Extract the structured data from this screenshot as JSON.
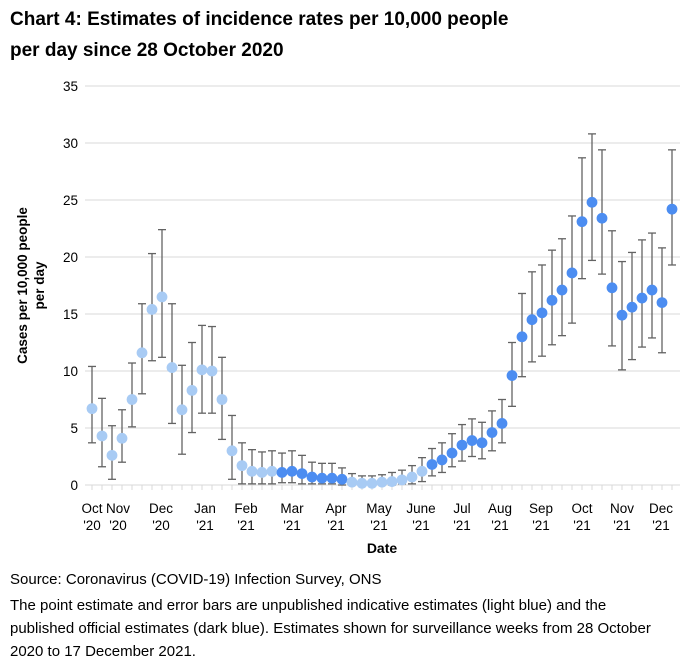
{
  "title_line1": "Chart 4: Estimates of incidence rates per 10,000 people",
  "title_line2": "per day since 28 October 2020",
  "source": "Source: Coronavirus (COVID-19) Infection Survey, ONS",
  "note": "The point estimate and error bars are unpublished indicative estimates (light blue) and the published official estimates (dark blue). Estimates shown for surveillance weeks from 28 October 2020 to 17 December 2021.",
  "y_axis": {
    "title_line1": "Cases per 10,000 people",
    "title_line2": "per day",
    "tick_labels": [
      "0",
      "5",
      "10",
      "15",
      "20",
      "25",
      "30",
      "35"
    ],
    "ticks": [
      0,
      5,
      10,
      15,
      20,
      25,
      30,
      35
    ]
  },
  "x_axis": {
    "title": "Date",
    "month_labels": [
      {
        "month": "Oct",
        "year": "'20"
      },
      {
        "month": "Nov",
        "year": "'20"
      },
      {
        "month": "Dec",
        "year": "'20"
      },
      {
        "month": "Jan",
        "year": "'21"
      },
      {
        "month": "Feb",
        "year": "'21"
      },
      {
        "month": "Mar",
        "year": "'21"
      },
      {
        "month": "Apr",
        "year": "'21"
      },
      {
        "month": "May",
        "year": "'21"
      },
      {
        "month": "June",
        "year": "'21"
      },
      {
        "month": "Jul",
        "year": "'21"
      },
      {
        "month": "Aug",
        "year": "'21"
      },
      {
        "month": "Sep",
        "year": "'21"
      },
      {
        "month": "Oct",
        "year": "'21"
      },
      {
        "month": "Nov",
        "year": "'21"
      },
      {
        "month": "Dec",
        "year": "'21"
      }
    ]
  },
  "colors": {
    "indicative_light_blue": "#a8cbf4",
    "official_dark_blue": "#4c8df1",
    "gridline": "#d9d9d9",
    "error_bar": "#636363",
    "text": "#000000"
  },
  "chart_data": {
    "type": "scatter",
    "title": "Chart 4: Estimates of incidence rates per 10,000 people per day since 28 October 2020",
    "xlabel": "Date",
    "ylabel": "Cases per 10,000 people per day",
    "ylim": [
      0,
      35
    ],
    "grid": "horizontal",
    "legend": "none (colors explained in footnote)",
    "x_start": "2020-10-28",
    "x_interval_days": 7,
    "series": [
      {
        "name": "Weekly incidence rate estimate",
        "points": [
          {
            "date": "2020-10-28",
            "value": 6.7,
            "lo": 3.7,
            "hi": 10.4,
            "type": "indicative"
          },
          {
            "date": "2020-11-04",
            "value": 4.3,
            "lo": 1.6,
            "hi": 7.6,
            "type": "indicative"
          },
          {
            "date": "2020-11-11",
            "value": 2.6,
            "lo": 0.5,
            "hi": 5.2,
            "type": "indicative"
          },
          {
            "date": "2020-11-18",
            "value": 4.1,
            "lo": 2.0,
            "hi": 6.6,
            "type": "indicative"
          },
          {
            "date": "2020-11-25",
            "value": 7.5,
            "lo": 5.1,
            "hi": 10.7,
            "type": "indicative"
          },
          {
            "date": "2020-12-02",
            "value": 11.6,
            "lo": 8.0,
            "hi": 15.9,
            "type": "indicative"
          },
          {
            "date": "2020-12-09",
            "value": 15.4,
            "lo": 10.9,
            "hi": 20.3,
            "type": "indicative"
          },
          {
            "date": "2020-12-16",
            "value": 16.5,
            "lo": 11.2,
            "hi": 22.4,
            "type": "indicative"
          },
          {
            "date": "2020-12-23",
            "value": 10.3,
            "lo": 5.4,
            "hi": 15.9,
            "type": "indicative"
          },
          {
            "date": "2020-12-30",
            "value": 6.6,
            "lo": 2.7,
            "hi": 10.5,
            "type": "indicative"
          },
          {
            "date": "2021-01-06",
            "value": 8.3,
            "lo": 4.6,
            "hi": 12.5,
            "type": "indicative"
          },
          {
            "date": "2021-01-13",
            "value": 10.1,
            "lo": 6.3,
            "hi": 14.0,
            "type": "indicative"
          },
          {
            "date": "2021-01-20",
            "value": 10.0,
            "lo": 6.3,
            "hi": 13.9,
            "type": "indicative"
          },
          {
            "date": "2021-01-27",
            "value": 7.5,
            "lo": 4.0,
            "hi": 11.2,
            "type": "indicative"
          },
          {
            "date": "2021-02-03",
            "value": 3.0,
            "lo": 0.5,
            "hi": 6.1,
            "type": "indicative"
          },
          {
            "date": "2021-02-10",
            "value": 1.7,
            "lo": 0.1,
            "hi": 3.7,
            "type": "indicative"
          },
          {
            "date": "2021-02-17",
            "value": 1.2,
            "lo": 0.1,
            "hi": 3.1,
            "type": "indicative"
          },
          {
            "date": "2021-02-24",
            "value": 1.1,
            "lo": 0.1,
            "hi": 2.9,
            "type": "indicative"
          },
          {
            "date": "2021-03-03",
            "value": 1.2,
            "lo": 0.1,
            "hi": 3.0,
            "type": "indicative"
          },
          {
            "date": "2021-03-10",
            "value": 1.1,
            "lo": 0.2,
            "hi": 2.8,
            "type": "official"
          },
          {
            "date": "2021-03-17",
            "value": 1.2,
            "lo": 0.2,
            "hi": 3.0,
            "type": "official"
          },
          {
            "date": "2021-03-24",
            "value": 1.0,
            "lo": 0.1,
            "hi": 2.6,
            "type": "official"
          },
          {
            "date": "2021-03-31",
            "value": 0.7,
            "lo": 0.1,
            "hi": 2.0,
            "type": "official"
          },
          {
            "date": "2021-04-07",
            "value": 0.6,
            "lo": 0.1,
            "hi": 1.9,
            "type": "official"
          },
          {
            "date": "2021-04-14",
            "value": 0.6,
            "lo": 0.1,
            "hi": 1.9,
            "type": "official"
          },
          {
            "date": "2021-04-21",
            "value": 0.5,
            "lo": 0.0,
            "hi": 1.5,
            "type": "official"
          },
          {
            "date": "2021-04-28",
            "value": 0.25,
            "lo": 0.0,
            "hi": 1.0,
            "type": "indicative"
          },
          {
            "date": "2021-05-05",
            "value": 0.15,
            "lo": 0.0,
            "hi": 0.8,
            "type": "indicative"
          },
          {
            "date": "2021-05-12",
            "value": 0.15,
            "lo": 0.0,
            "hi": 0.8,
            "type": "indicative"
          },
          {
            "date": "2021-05-19",
            "value": 0.25,
            "lo": 0.0,
            "hi": 0.9,
            "type": "indicative"
          },
          {
            "date": "2021-05-26",
            "value": 0.3,
            "lo": 0.0,
            "hi": 1.1,
            "type": "indicative"
          },
          {
            "date": "2021-06-02",
            "value": 0.45,
            "lo": 0.1,
            "hi": 1.3,
            "type": "indicative"
          },
          {
            "date": "2021-06-09",
            "value": 0.7,
            "lo": 0.1,
            "hi": 1.7,
            "type": "indicative"
          },
          {
            "date": "2021-06-16",
            "value": 1.2,
            "lo": 0.3,
            "hi": 2.4,
            "type": "indicative"
          },
          {
            "date": "2021-06-23",
            "value": 1.8,
            "lo": 0.8,
            "hi": 3.2,
            "type": "official"
          },
          {
            "date": "2021-06-30",
            "value": 2.2,
            "lo": 1.1,
            "hi": 3.7,
            "type": "official"
          },
          {
            "date": "2021-07-07",
            "value": 2.8,
            "lo": 1.6,
            "hi": 4.5,
            "type": "official"
          },
          {
            "date": "2021-07-14",
            "value": 3.5,
            "lo": 2.1,
            "hi": 5.3,
            "type": "official"
          },
          {
            "date": "2021-07-21",
            "value": 3.9,
            "lo": 2.5,
            "hi": 5.8,
            "type": "official"
          },
          {
            "date": "2021-07-28",
            "value": 3.7,
            "lo": 2.3,
            "hi": 5.5,
            "type": "official"
          },
          {
            "date": "2021-08-04",
            "value": 4.6,
            "lo": 3.0,
            "hi": 6.5,
            "type": "official"
          },
          {
            "date": "2021-08-11",
            "value": 5.4,
            "lo": 3.7,
            "hi": 7.5,
            "type": "official"
          },
          {
            "date": "2021-08-18",
            "value": 9.6,
            "lo": 6.9,
            "hi": 12.5,
            "type": "official"
          },
          {
            "date": "2021-08-25",
            "value": 13.0,
            "lo": 9.5,
            "hi": 16.8,
            "type": "official"
          },
          {
            "date": "2021-09-01",
            "value": 14.5,
            "lo": 10.8,
            "hi": 18.7,
            "type": "official"
          },
          {
            "date": "2021-09-08",
            "value": 15.1,
            "lo": 11.3,
            "hi": 19.3,
            "type": "official"
          },
          {
            "date": "2021-09-15",
            "value": 16.2,
            "lo": 12.3,
            "hi": 20.6,
            "type": "official"
          },
          {
            "date": "2021-09-22",
            "value": 17.1,
            "lo": 13.1,
            "hi": 21.6,
            "type": "official"
          },
          {
            "date": "2021-09-29",
            "value": 18.6,
            "lo": 14.2,
            "hi": 23.6,
            "type": "official"
          },
          {
            "date": "2021-10-06",
            "value": 23.1,
            "lo": 18.1,
            "hi": 28.7,
            "type": "official"
          },
          {
            "date": "2021-10-13",
            "value": 24.8,
            "lo": 19.7,
            "hi": 30.8,
            "type": "official"
          },
          {
            "date": "2021-10-20",
            "value": 23.4,
            "lo": 18.5,
            "hi": 29.4,
            "type": "official"
          },
          {
            "date": "2021-10-27",
            "value": 17.3,
            "lo": 12.2,
            "hi": 22.3,
            "type": "official"
          },
          {
            "date": "2021-11-03",
            "value": 14.9,
            "lo": 10.1,
            "hi": 19.6,
            "type": "official"
          },
          {
            "date": "2021-11-10",
            "value": 15.6,
            "lo": 11.0,
            "hi": 20.4,
            "type": "official"
          },
          {
            "date": "2021-11-17",
            "value": 16.4,
            "lo": 12.1,
            "hi": 21.5,
            "type": "official"
          },
          {
            "date": "2021-11-24",
            "value": 17.1,
            "lo": 12.9,
            "hi": 22.1,
            "type": "official"
          },
          {
            "date": "2021-12-01",
            "value": 16.0,
            "lo": 11.6,
            "hi": 20.8,
            "type": "official"
          },
          {
            "date": "2021-12-08",
            "value": 24.2,
            "lo": 19.3,
            "hi": 29.4,
            "type": "official"
          }
        ]
      }
    ]
  }
}
